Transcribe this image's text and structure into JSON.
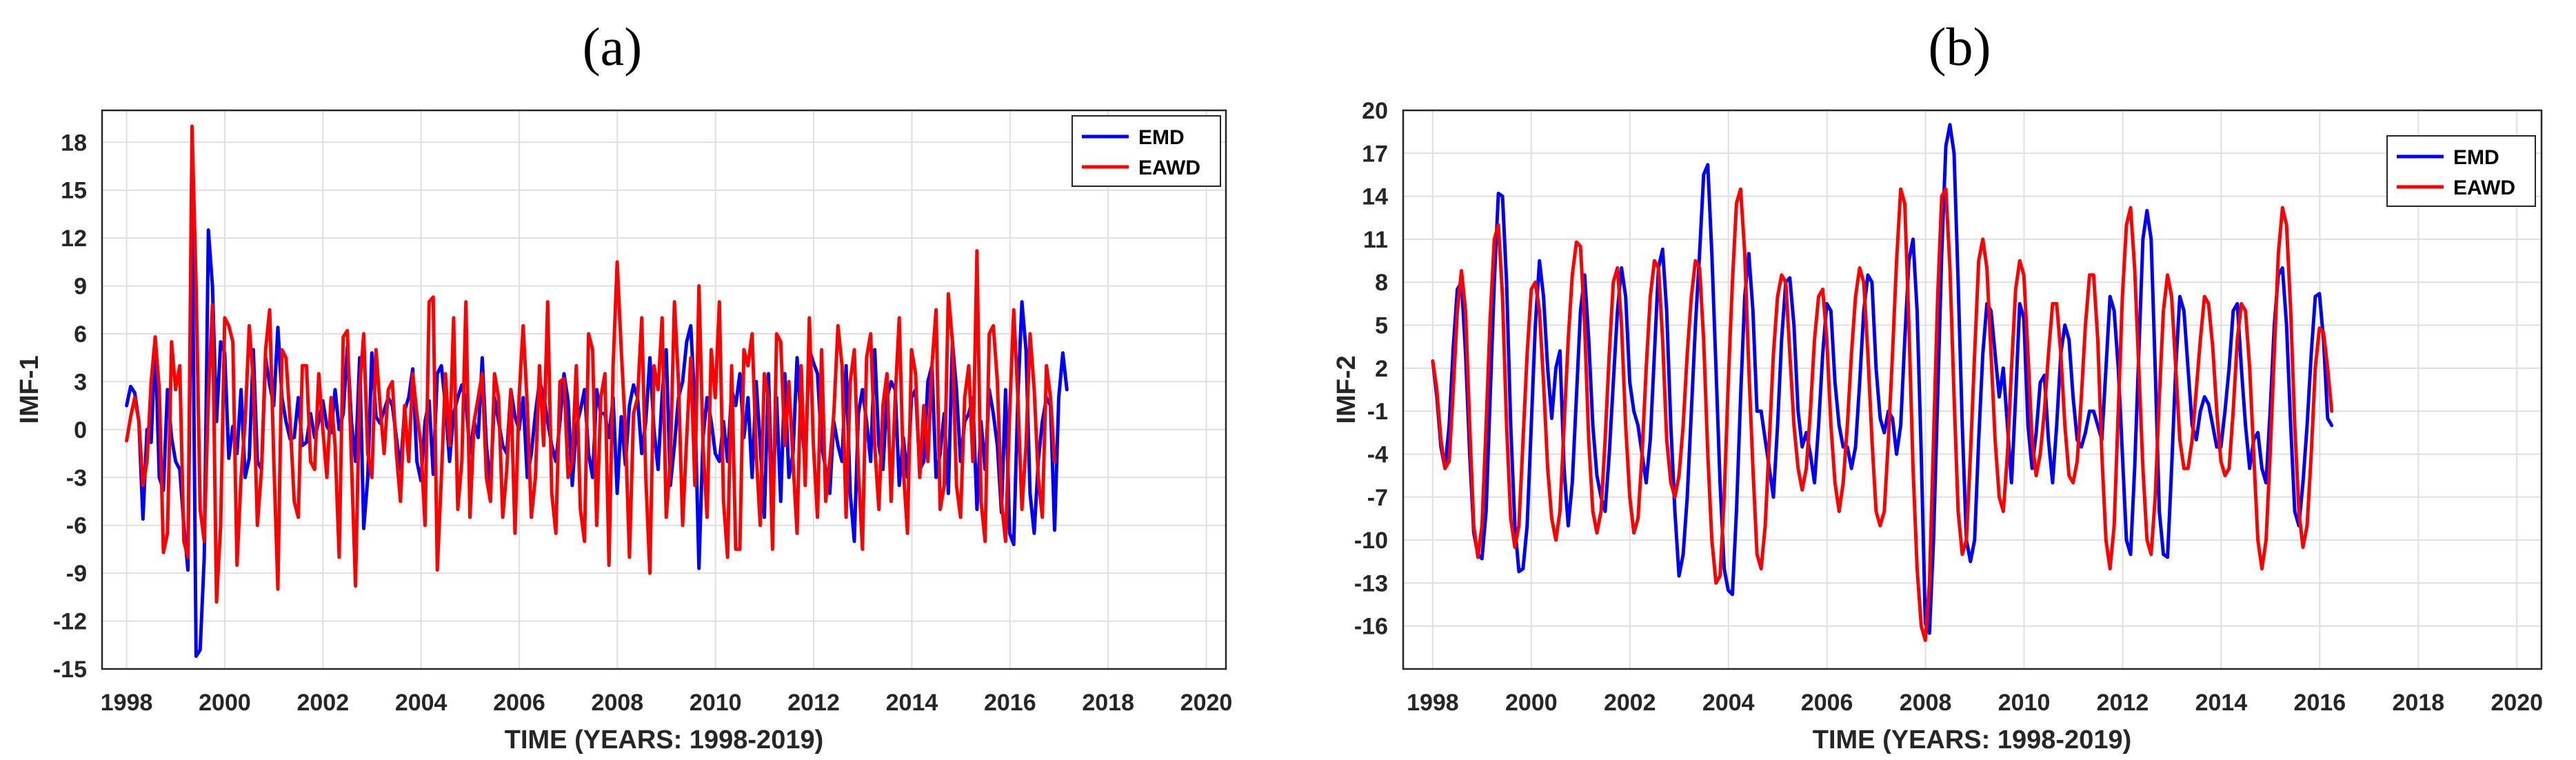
{
  "chart_data": [
    {
      "type": "line",
      "panel_label": "(a)",
      "title": "",
      "xlabel": "TIME (YEARS: 1998-2019)",
      "ylabel": "IMF-1",
      "xlim": [
        1997.5,
        2020.4
      ],
      "ylim": [
        -15,
        20
      ],
      "xticks": [
        1998,
        2000,
        2002,
        2004,
        2006,
        2008,
        2010,
        2012,
        2014,
        2016,
        2018,
        2020
      ],
      "yticks": [
        -15,
        -12,
        -9,
        -6,
        -3,
        0,
        3,
        6,
        9,
        12,
        15,
        18
      ],
      "grid": true,
      "legend_position": "top-right",
      "legend": [
        "EMD",
        "EAWD"
      ],
      "x_start": 1998.0,
      "x_step": 0.0833,
      "series": [
        {
          "name": "EMD",
          "color": "#0000ff",
          "values": [
            1.5,
            2.7,
            2.3,
            0.5,
            -5.6,
            0.0,
            -0.8,
            5.6,
            -3.0,
            -3.8,
            2.5,
            -0.5,
            -2.0,
            -2.5,
            -6.0,
            -8.8,
            14.5,
            -14.2,
            -13.8,
            -8.0,
            12.5,
            9.0,
            0.5,
            5.5,
            4.8,
            -1.8,
            0.2,
            -1.5,
            2.5,
            -3.0,
            -1.8,
            5.0,
            -2.0,
            -2.5,
            4.5,
            2.8,
            1.5,
            6.4,
            2.0,
            0.5,
            -0.6,
            -0.5,
            2.0,
            -1.0,
            -0.8,
            1.0,
            -0.5,
            0.5,
            1.8,
            0.2,
            -0.2,
            2.5,
            0.0,
            1.0,
            5.2,
            0.5,
            -2.0,
            4.5,
            -6.2,
            -3.0,
            4.8,
            0.8,
            0.4,
            1.2,
            2.0,
            1.5,
            -0.5,
            -2.5,
            1.2,
            2.0,
            3.8,
            -2.0,
            -3.2,
            0.5,
            1.8,
            -2.8,
            3.5,
            4.0,
            1.5,
            -2.0,
            1.0,
            2.0,
            2.8,
            1.8,
            -1.5,
            0.5,
            -0.5,
            4.5,
            -1.0,
            -3.5,
            2.0,
            0.5,
            -1.0,
            -1.5,
            2.5,
            0.8,
            0.0,
            2.0,
            -3.0,
            -1.5,
            1.0,
            3.0,
            2.2,
            0.5,
            -1.0,
            -2.0,
            0.5,
            3.5,
            1.8,
            -3.5,
            0.2,
            1.2,
            2.5,
            -1.5,
            -3.0,
            2.5,
            1.0,
            1.0,
            -0.5,
            2.0,
            -4.0,
            0.8,
            -2.2,
            1.5,
            2.8,
            2.0,
            -1.5,
            0.5,
            4.5,
            0.0,
            -2.5,
            2.2,
            5.0,
            -3.5,
            -1.0,
            2.0,
            3.0,
            5.5,
            6.5,
            1.5,
            -8.7,
            -0.5,
            2.0,
            0.5,
            -1.5,
            -2.0,
            0.5,
            -2.0,
            2.5,
            1.5,
            3.5,
            -0.5,
            2.0,
            -3.0,
            3.0,
            -1.0,
            -5.5,
            3.5,
            -5.0,
            2.0,
            -4.5,
            3.5,
            -3.0,
            -1.5,
            4.5,
            0.5,
            -2.0,
            5.0,
            4.2,
            3.5,
            -1.0,
            -2.5,
            -4.0,
            0.5,
            -1.0,
            -2.0,
            4.0,
            -4.0,
            -7.0,
            1.0,
            2.5,
            0.5,
            -2.0,
            5.0,
            -1.0,
            -2.5,
            2.0,
            3.0,
            2.5,
            -3.5,
            -0.5,
            -3.0,
            2.0,
            2.5,
            -2.5,
            -2.0,
            3.0,
            4.0,
            -3.0,
            -1.5,
            1.0,
            -4.0,
            5.5,
            2.5,
            -2.0,
            0.5,
            1.0,
            2.0,
            -5.0,
            0.5,
            -2.5,
            2.5,
            1.0,
            -1.0,
            -5.2,
            2.5,
            -6.5,
            -7.2,
            2.0,
            8.0,
            5.0,
            -4.0,
            -6.5,
            -2.0,
            0.5,
            2.0,
            1.5,
            -6.3,
            2.0,
            4.8,
            2.5
          ]
        },
        {
          "name": "EAWD",
          "color": "#ff0000",
          "values": [
            -0.7,
            0.8,
            2.0,
            0.5,
            -3.5,
            -2.0,
            3.0,
            5.8,
            2.5,
            -7.7,
            -6.5,
            5.5,
            2.5,
            4.0,
            -7.0,
            -8.0,
            19.0,
            9.0,
            -5.0,
            -7.0,
            2.0,
            7.8,
            -10.8,
            -6.0,
            7.0,
            6.5,
            5.5,
            -8.5,
            -3.0,
            0.5,
            6.5,
            3.0,
            -6.0,
            -2.5,
            5.0,
            7.5,
            -1.8,
            -10.0,
            5.0,
            4.5,
            0.5,
            -4.5,
            -5.5,
            4.0,
            4.0,
            -2.0,
            -2.5,
            3.5,
            0.0,
            -3.0,
            2.0,
            -1.0,
            -8.0,
            5.8,
            6.2,
            -2.0,
            -9.8,
            2.5,
            6.0,
            -1.5,
            -3.0,
            5.0,
            1.5,
            -1.5,
            2.5,
            3.0,
            -1.5,
            -4.5,
            1.5,
            -2.0,
            3.5,
            1.0,
            -1.0,
            -6.0,
            8.0,
            8.3,
            -8.8,
            -3.0,
            3.5,
            -1.0,
            7.0,
            -5.0,
            -2.0,
            8.0,
            -5.5,
            0.5,
            2.0,
            3.5,
            -3.0,
            -4.5,
            3.5,
            2.0,
            -5.5,
            -2.5,
            2.5,
            -6.5,
            2.0,
            6.5,
            1.5,
            -5.5,
            -3.0,
            4.0,
            -1.0,
            8.0,
            -4.0,
            -6.5,
            3.0,
            3.2,
            -3.0,
            -2.0,
            4.0,
            -5.0,
            -7.0,
            6.0,
            5.0,
            -6.0,
            2.0,
            3.5,
            -8.5,
            4.0,
            10.5,
            5.0,
            0.0,
            -8.0,
            1.0,
            2.0,
            7.0,
            -3.0,
            -9.0,
            4.0,
            2.5,
            7.0,
            -5.5,
            -2.0,
            8.0,
            3.0,
            -6.0,
            -0.5,
            4.5,
            -3.5,
            9.0,
            -1.0,
            -5.5,
            5.0,
            2.0,
            8.0,
            -4.5,
            -8.0,
            4.0,
            -7.5,
            -7.5,
            5.0,
            4.0,
            6.0,
            -1.5,
            -6.0,
            3.5,
            2.0,
            -7.5,
            6.0,
            5.5,
            -1.0,
            3.0,
            -2.0,
            -6.5,
            4.0,
            -3.5,
            7.0,
            -1.0,
            -5.5,
            5.0,
            -4.5,
            -2.0,
            1.0,
            6.5,
            4.0,
            -5.5,
            3.0,
            5.0,
            -2.5,
            -7.5,
            4.5,
            6.0,
            -1.0,
            -5.0,
            1.5,
            3.5,
            -4.5,
            2.0,
            7.0,
            -2.5,
            -6.5,
            5.0,
            3.5,
            -3.0,
            1.5,
            -2.0,
            4.0,
            7.5,
            -5.0,
            -3.5,
            8.5,
            5.5,
            -3.5,
            -5.5,
            2.0,
            4.0,
            -2.0,
            11.2,
            -4.5,
            -7.0,
            6.0,
            6.5,
            3.0,
            -4.5,
            -7.0,
            1.0,
            7.5,
            2.0,
            -5.0,
            -1.0,
            6.0,
            2.5,
            -3.0,
            -5.5,
            4.0,
            2.0,
            -2.0
          ]
        }
      ]
    },
    {
      "type": "line",
      "panel_label": "(b)",
      "title": "",
      "xlabel": "TIME (YEARS: 1998-2019)",
      "ylabel": "IMF-2",
      "xlim": [
        1997.4,
        2020.5
      ],
      "ylim": [
        -19,
        20
      ],
      "xticks": [
        1998,
        2000,
        2002,
        2004,
        2006,
        2008,
        2010,
        2012,
        2014,
        2016,
        2018,
        2020
      ],
      "yticks": [
        -16,
        -13,
        -10,
        -7,
        -4,
        -1,
        2,
        5,
        8,
        11,
        14,
        17,
        20
      ],
      "grid": true,
      "legend_position": "top-right",
      "legend": [
        "EMD",
        "EAWD"
      ],
      "x_start": 1998.0,
      "x_step": 0.0833,
      "series": [
        {
          "name": "EMD",
          "color": "#0000ff",
          "values": [
            2.5,
            0.0,
            -3.5,
            -5.0,
            -2.0,
            3.5,
            7.5,
            8.0,
            3.0,
            -4.0,
            -9.5,
            -11.0,
            -11.3,
            -8.0,
            0.0,
            8.0,
            14.2,
            14.0,
            8.0,
            -2.0,
            -9.0,
            -12.2,
            -12.0,
            -9.0,
            -2.0,
            5.0,
            9.5,
            7.0,
            2.0,
            -1.5,
            2.0,
            3.2,
            -5.0,
            -9.0,
            -6.0,
            0.0,
            6.0,
            8.5,
            4.0,
            -2.0,
            -5.5,
            -7.0,
            -8.0,
            -4.0,
            1.0,
            6.0,
            9.0,
            7.0,
            1.0,
            -1.0,
            -2.0,
            -4.0,
            -6.0,
            -3.0,
            3.0,
            9.0,
            10.3,
            6.0,
            -2.0,
            -8.0,
            -12.5,
            -11.0,
            -7.0,
            -1.0,
            5.0,
            10.0,
            15.5,
            16.2,
            10.0,
            2.0,
            -6.0,
            -12.0,
            -13.5,
            -13.8,
            -8.0,
            0.0,
            7.0,
            10.0,
            6.0,
            -1.0,
            -1.0,
            -3.0,
            -5.0,
            -7.0,
            -2.0,
            4.0,
            8.0,
            8.3,
            5.0,
            -1.0,
            -3.5,
            -2.5,
            -4.0,
            -6.0,
            -2.0,
            3.0,
            6.5,
            6.0,
            1.0,
            -2.0,
            -3.5,
            -3.5,
            -5.0,
            -3.5,
            1.0,
            6.0,
            8.5,
            8.0,
            2.0,
            -1.5,
            -2.5,
            -1.0,
            -1.5,
            -4.0,
            -2.0,
            4.0,
            9.5,
            11.0,
            6.0,
            -4.0,
            -15.8,
            -16.5,
            -10.0,
            0.0,
            10.0,
            17.5,
            19.0,
            17.0,
            8.0,
            -2.0,
            -10.0,
            -11.5,
            -10.0,
            -3.0,
            3.0,
            6.5,
            6.0,
            3.0,
            0.0,
            2.0,
            -2.0,
            -6.0,
            0.0,
            6.5,
            5.5,
            -2.0,
            -5.0,
            -2.5,
            1.0,
            1.5,
            -3.0,
            -6.0,
            -2.0,
            3.0,
            5.0,
            4.0,
            0.0,
            -3.0,
            -3.5,
            -2.5,
            -1.0,
            -1.0,
            -2.0,
            -3.0,
            2.0,
            7.0,
            6.0,
            2.0,
            -4.0,
            -10.0,
            -11.0,
            -5.0,
            3.0,
            11.0,
            13.0,
            11.0,
            2.0,
            -8.0,
            -11.0,
            -11.2,
            -5.0,
            2.0,
            7.0,
            6.0,
            2.0,
            -2.0,
            -3.0,
            -1.0,
            0.0,
            -0.5,
            -2.0,
            -3.5,
            -3.5,
            -1.0,
            2.0,
            6.0,
            6.5,
            2.0,
            -2.0,
            -5.0,
            -3.0,
            -2.5,
            -5.0,
            -6.0,
            -1.0,
            5.0,
            8.5,
            9.0,
            5.0,
            -2.0,
            -8.0,
            -9.0,
            -6.0,
            -2.0,
            3.0,
            7.0,
            7.2,
            4.0,
            -1.5,
            -2.0
          ]
        },
        {
          "name": "EAWD",
          "color": "#ff0000",
          "values": [
            2.5,
            0.5,
            -3.0,
            -5.0,
            -4.5,
            0.5,
            6.0,
            8.8,
            6.0,
            -2.0,
            -9.0,
            -11.2,
            -9.0,
            -2.0,
            5.5,
            11.0,
            12.0,
            7.0,
            -2.0,
            -8.5,
            -10.5,
            -9.0,
            -3.0,
            3.0,
            7.5,
            8.0,
            6.0,
            1.0,
            -5.0,
            -8.5,
            -10.0,
            -8.0,
            -2.0,
            4.0,
            8.5,
            10.8,
            10.5,
            5.0,
            -3.0,
            -8.0,
            -9.5,
            -8.0,
            -3.0,
            3.0,
            8.0,
            9.0,
            5.0,
            -2.0,
            -7.0,
            -9.5,
            -8.5,
            -4.0,
            2.0,
            7.0,
            9.5,
            9.0,
            4.0,
            -3.0,
            -6.0,
            -7.0,
            -5.5,
            -2.0,
            3.0,
            7.0,
            9.5,
            9.0,
            4.0,
            -4.0,
            -10.0,
            -13.0,
            -12.5,
            -7.0,
            1.0,
            8.0,
            13.5,
            14.5,
            10.0,
            2.0,
            -5.0,
            -11.0,
            -12.0,
            -9.0,
            -3.0,
            3.0,
            7.0,
            8.5,
            8.0,
            3.0,
            -2.0,
            -5.0,
            -6.5,
            -5.0,
            -1.0,
            4.0,
            7.0,
            7.5,
            4.0,
            -2.0,
            -6.0,
            -8.0,
            -6.0,
            -2.0,
            3.0,
            7.0,
            9.0,
            8.0,
            3.0,
            -3.0,
            -8.0,
            -9.0,
            -8.0,
            -3.0,
            3.0,
            9.5,
            14.5,
            13.5,
            5.0,
            -5.0,
            -12.0,
            -16.0,
            -17.0,
            -13.0,
            -3.0,
            7.0,
            14.0,
            14.5,
            9.0,
            0.0,
            -8.0,
            -11.0,
            -10.0,
            -4.0,
            3.0,
            9.5,
            11.0,
            9.0,
            3.0,
            -3.0,
            -7.0,
            -8.0,
            -4.0,
            2.0,
            7.5,
            9.5,
            8.5,
            3.0,
            -3.0,
            -5.5,
            -4.0,
            -1.0,
            3.0,
            6.5,
            6.5,
            3.0,
            -2.0,
            -5.5,
            -6.0,
            -4.5,
            0.0,
            5.0,
            8.5,
            8.5,
            4.0,
            -4.0,
            -10.0,
            -12.0,
            -9.0,
            -1.0,
            7.0,
            12.0,
            13.2,
            9.0,
            2.0,
            -5.0,
            -10.0,
            -11.0,
            -7.0,
            0.0,
            6.0,
            8.5,
            7.0,
            2.0,
            -3.0,
            -5.0,
            -5.0,
            -3.0,
            0.5,
            4.0,
            7.0,
            6.5,
            3.5,
            -1.0,
            -4.5,
            -5.5,
            -5.0,
            -1.0,
            4.0,
            6.5,
            6.0,
            2.0,
            -4.0,
            -10.0,
            -12.0,
            -10.0,
            -4.0,
            3.0,
            10.0,
            13.2,
            12.0,
            6.0,
            -2.0,
            -8.0,
            -10.5,
            -9.0,
            -4.0,
            2.0,
            4.8,
            4.5,
            2.0,
            -1.0
          ]
        }
      ]
    }
  ]
}
